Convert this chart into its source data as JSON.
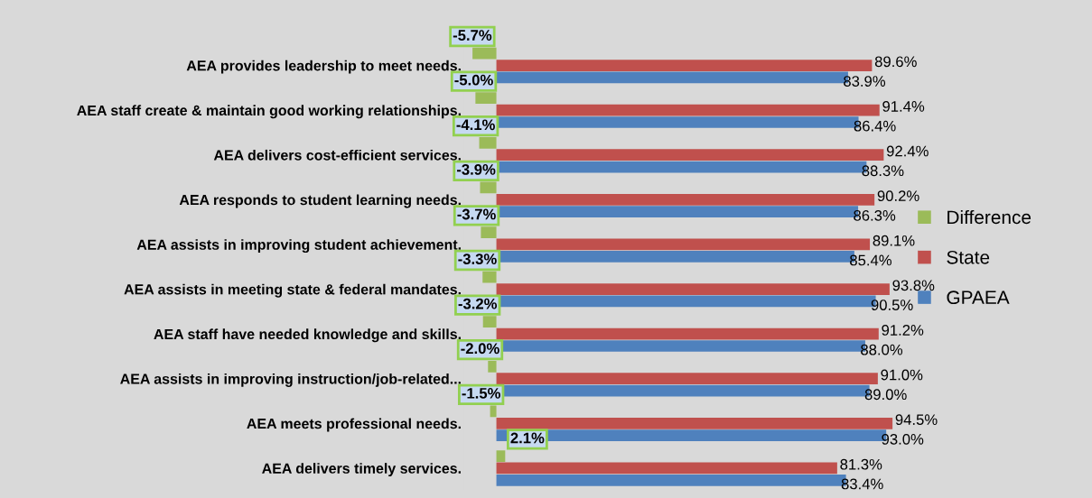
{
  "chart_data": {
    "type": "bar",
    "orientation": "horizontal",
    "categories": [
      "AEA provides leadership to meet needs.",
      "AEA staff create & maintain good working relationships.",
      "AEA delivers cost-efficient services.",
      "AEA responds to student learning needs.",
      "AEA assists in improving student achievement.",
      "AEA assists in meeting state & federal mandates.",
      "AEA staff have needed knowledge and skills.",
      "AEA assists in improving instruction/job-related...",
      "AEA meets professional needs.",
      "AEA delivers timely services."
    ],
    "series": [
      {
        "name": "Difference",
        "color": "#9bbb59",
        "values": [
          -5.7,
          -5.0,
          -4.1,
          -3.9,
          -3.7,
          -3.3,
          -3.2,
          -2.0,
          -1.5,
          2.1
        ],
        "value_labels": [
          "-5.7%",
          "-5.0%",
          "-4.1%",
          "-3.9%",
          "-3.7%",
          "-3.3%",
          "-3.2%",
          "-2.0%",
          "-1.5%",
          "2.1%"
        ]
      },
      {
        "name": "State",
        "color": "#c0504d",
        "values": [
          89.6,
          91.4,
          92.4,
          90.2,
          89.1,
          93.8,
          91.2,
          91.0,
          94.5,
          81.3
        ],
        "value_labels": [
          "89.6%",
          "91.4%",
          "92.4%",
          "90.2%",
          "89.1%",
          "93.8%",
          "91.2%",
          "91.0%",
          "94.5%",
          "81.3%"
        ]
      },
      {
        "name": "GPAEA",
        "color": "#4f81bd",
        "values": [
          83.9,
          86.4,
          88.3,
          86.3,
          85.4,
          90.5,
          88.0,
          89.0,
          93.0,
          83.4
        ],
        "value_labels": [
          "83.9%",
          "86.4%",
          "88.3%",
          "86.3%",
          "85.4%",
          "90.5%",
          "88.0%",
          "89.0%",
          "93.0%",
          "83.4%"
        ]
      }
    ],
    "tick_labels": "y",
    "grid": false,
    "legend": "right"
  }
}
